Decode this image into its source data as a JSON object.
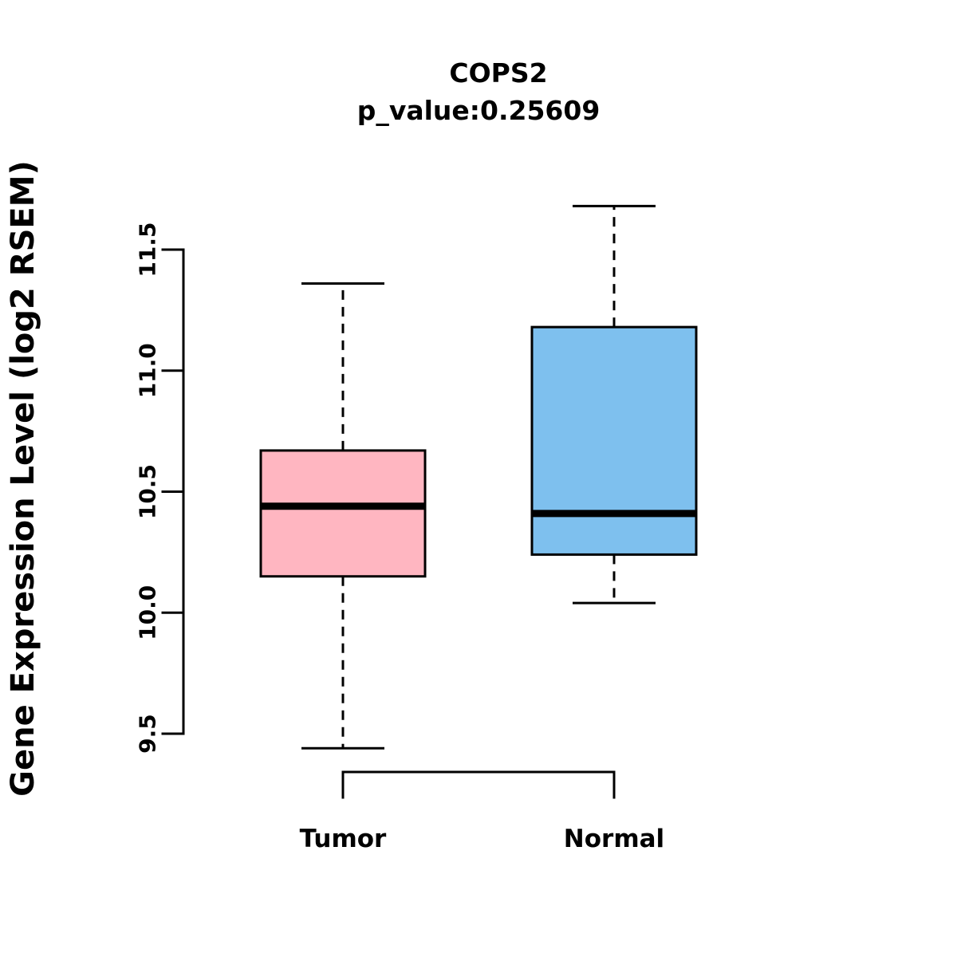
{
  "title": "COPS2",
  "subtitle": "p_value:0.25609",
  "y_axis_label": "Gene Expression Level (log2 RSEM)",
  "chart_data": {
    "type": "boxplot",
    "title": "COPS2",
    "subtitle": "p_value:0.25609",
    "ylabel": "Gene Expression Level (log2 RSEM)",
    "categories": [
      "Tumor",
      "Normal"
    ],
    "yticks": [
      9.5,
      10.0,
      10.5,
      11.0,
      11.5
    ],
    "ylim": [
      9.3,
      11.8
    ],
    "grid": false,
    "legend": "none",
    "series": [
      {
        "name": "Tumor",
        "lower_whisker": 9.44,
        "q1": 10.15,
        "median": 10.44,
        "q3": 10.67,
        "upper_whisker": 11.36,
        "color": "#FFB6C1"
      },
      {
        "name": "Normal",
        "lower_whisker": 10.04,
        "q1": 10.24,
        "median": 10.41,
        "q3": 11.18,
        "upper_whisker": 11.68,
        "color": "#7EC0EE"
      }
    ]
  }
}
